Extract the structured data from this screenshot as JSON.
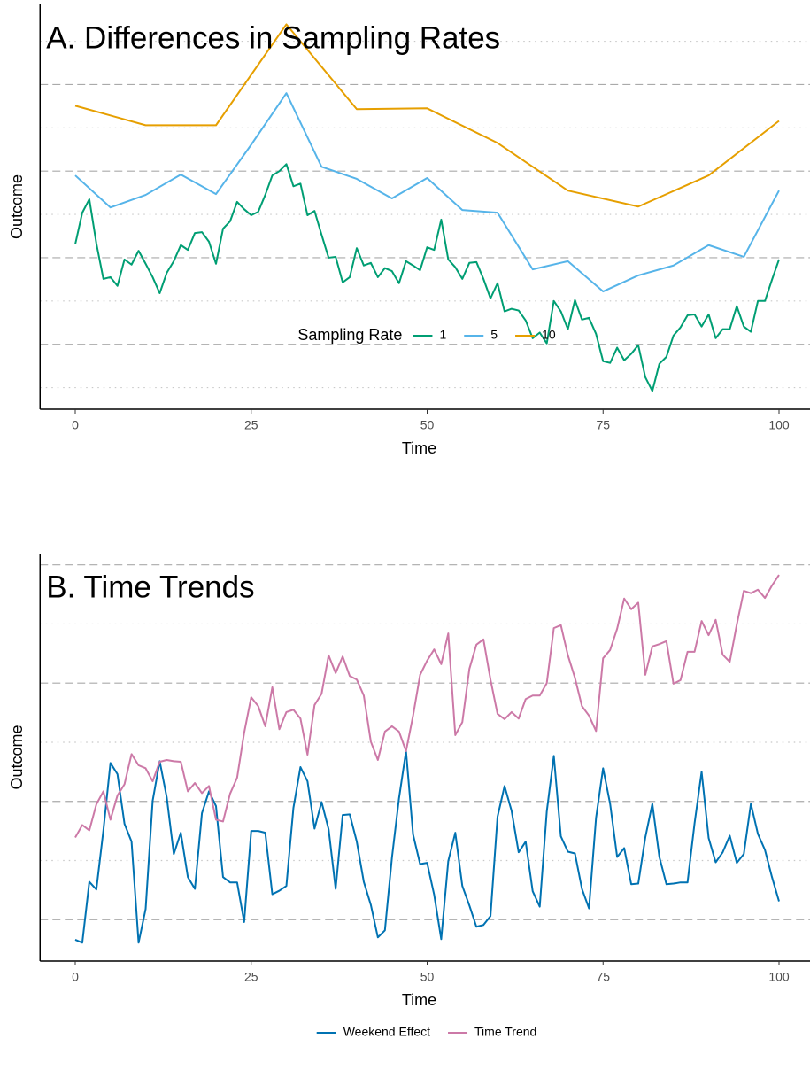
{
  "chart_data": [
    {
      "type": "line",
      "title": "A. Differences in Sampling Rates",
      "xlabel": "Time",
      "ylabel": "Outcome",
      "xlim": [
        -5,
        105
      ],
      "xticks": [
        0,
        25,
        50,
        75,
        100
      ],
      "ylim": [
        -0.5,
        8.85
      ],
      "yticks": [
        1,
        3,
        5,
        7
      ],
      "yminor": [
        0,
        2,
        4,
        6,
        8
      ],
      "legend": "bottom",
      "legend_title": "Sampling Rate",
      "series": [
        {
          "name": "1",
          "color": "#009E73",
          "x": [
            0,
            1,
            2,
            3,
            4,
            5,
            6,
            7,
            8,
            9,
            10,
            11,
            12,
            13,
            14,
            15,
            16,
            17,
            18,
            19,
            20,
            21,
            22,
            23,
            24,
            25,
            26,
            27,
            28,
            29,
            30,
            31,
            32,
            33,
            34,
            35,
            36,
            37,
            38,
            39,
            40,
            41,
            42,
            43,
            44,
            45,
            46,
            47,
            48,
            49,
            50,
            51,
            52,
            53,
            54,
            55,
            56,
            57,
            58,
            59,
            60,
            61,
            62,
            63,
            64,
            65,
            66,
            67,
            68,
            69,
            70,
            71,
            72,
            73,
            74,
            75,
            76,
            77,
            78,
            79,
            80,
            81,
            82,
            83,
            84,
            85,
            86,
            87,
            88,
            89,
            90,
            91,
            92,
            93,
            94,
            95,
            96,
            97,
            98,
            99,
            100
          ],
          "values": [
            3.31,
            4.04,
            4.35,
            3.33,
            2.51,
            2.55,
            2.35,
            2.96,
            2.84,
            3.16,
            2.86,
            2.55,
            2.18,
            2.65,
            2.92,
            3.29,
            3.18,
            3.57,
            3.59,
            3.37,
            2.86,
            3.67,
            3.84,
            4.29,
            4.12,
            3.98,
            4.06,
            4.45,
            4.9,
            5.0,
            5.16,
            4.65,
            4.71,
            3.98,
            4.08,
            3.53,
            3.0,
            3.02,
            2.43,
            2.55,
            3.22,
            2.82,
            2.88,
            2.55,
            2.76,
            2.69,
            2.41,
            2.92,
            2.82,
            2.71,
            3.24,
            3.18,
            3.88,
            2.96,
            2.78,
            2.51,
            2.88,
            2.9,
            2.51,
            2.06,
            2.41,
            1.76,
            1.82,
            1.78,
            1.55,
            1.14,
            1.27,
            1.02,
            2.0,
            1.76,
            1.35,
            2.02,
            1.57,
            1.61,
            1.24,
            0.61,
            0.57,
            0.92,
            0.63,
            0.78,
            0.98,
            0.24,
            -0.08,
            0.55,
            0.71,
            1.2,
            1.39,
            1.67,
            1.69,
            1.41,
            1.69,
            1.14,
            1.35,
            1.35,
            1.88,
            1.41,
            1.29,
            2.0,
            2.0,
            2.49,
            2.96
          ]
        },
        {
          "name": "5",
          "color": "#56B4E9",
          "x": [
            0,
            5,
            10,
            15,
            20,
            25,
            30,
            35,
            40,
            45,
            50,
            55,
            60,
            65,
            70,
            75,
            80,
            85,
            90,
            95,
            100
          ],
          "values": [
            4.9,
            4.16,
            4.45,
            4.92,
            4.47,
            5.61,
            6.8,
            5.1,
            4.82,
            4.37,
            4.84,
            4.1,
            4.04,
            2.73,
            2.92,
            2.22,
            2.59,
            2.82,
            3.29,
            3.02,
            4.55
          ]
        },
        {
          "name": "10",
          "color": "#E69F00",
          "x": [
            0,
            10,
            20,
            30,
            40,
            50,
            60,
            70,
            80,
            90,
            100
          ],
          "values": [
            6.51,
            6.06,
            6.06,
            8.39,
            6.43,
            6.45,
            5.65,
            4.55,
            4.18,
            4.9,
            6.16
          ]
        }
      ]
    },
    {
      "type": "line",
      "title": "B. Time Trends",
      "xlabel": "Time",
      "ylabel": "Outcome",
      "xlim": [
        -5,
        105
      ],
      "xticks": [
        0,
        25,
        50,
        75,
        100
      ],
      "ylim": [
        -0.7,
        6.19
      ],
      "yticks": [
        0,
        2,
        4,
        6
      ],
      "yminor": [
        1,
        3,
        5
      ],
      "legend": "bottom",
      "series": [
        {
          "name": "Weekend Effect",
          "color": "#0072B2",
          "x": [
            0,
            1,
            2,
            3,
            4,
            5,
            6,
            7,
            8,
            9,
            10,
            11,
            12,
            13,
            14,
            15,
            16,
            17,
            18,
            19,
            20,
            21,
            22,
            23,
            24,
            25,
            26,
            27,
            28,
            29,
            30,
            31,
            32,
            33,
            34,
            35,
            36,
            37,
            38,
            39,
            40,
            41,
            42,
            43,
            44,
            45,
            46,
            47,
            48,
            49,
            50,
            51,
            52,
            53,
            54,
            55,
            56,
            57,
            58,
            59,
            60,
            61,
            62,
            63,
            64,
            65,
            66,
            67,
            68,
            69,
            70,
            71,
            72,
            73,
            74,
            75,
            76,
            77,
            78,
            79,
            80,
            81,
            82,
            83,
            84,
            85,
            86,
            87,
            88,
            89,
            90,
            91,
            92,
            93,
            94,
            95,
            96,
            97,
            98,
            99,
            100
          ],
          "values": [
            -0.34,
            -0.39,
            0.64,
            0.51,
            1.51,
            2.65,
            2.46,
            1.62,
            1.32,
            -0.39,
            0.18,
            2.01,
            2.68,
            2.07,
            1.11,
            1.47,
            0.72,
            0.52,
            1.8,
            2.17,
            1.92,
            0.72,
            0.63,
            0.63,
            -0.04,
            1.5,
            1.5,
            1.47,
            0.43,
            0.49,
            0.57,
            1.89,
            2.58,
            2.34,
            1.54,
            1.99,
            1.53,
            0.52,
            1.77,
            1.78,
            1.32,
            0.64,
            0.25,
            -0.3,
            -0.18,
            1.05,
            2.05,
            2.85,
            1.44,
            0.94,
            0.96,
            0.42,
            -0.33,
            0.99,
            1.47,
            0.57,
            0.24,
            -0.12,
            -0.09,
            0.06,
            1.74,
            2.26,
            1.84,
            1.14,
            1.32,
            0.48,
            0.22,
            1.83,
            2.77,
            1.41,
            1.15,
            1.12,
            0.52,
            0.19,
            1.72,
            2.56,
            1.96,
            1.06,
            1.21,
            0.6,
            0.61,
            1.39,
            1.96,
            1.06,
            0.6,
            0.61,
            0.63,
            0.63,
            1.63,
            2.5,
            1.38,
            0.97,
            1.14,
            1.42,
            0.96,
            1.11,
            1.96,
            1.45,
            1.18,
            0.72,
            0.31
          ]
        },
        {
          "name": "Time Trend",
          "color": "#CC79A7",
          "x": [
            0,
            1,
            2,
            3,
            4,
            5,
            6,
            7,
            8,
            9,
            10,
            11,
            12,
            13,
            14,
            15,
            16,
            17,
            18,
            19,
            20,
            21,
            22,
            23,
            24,
            25,
            26,
            27,
            28,
            29,
            30,
            31,
            32,
            33,
            34,
            35,
            36,
            37,
            38,
            39,
            40,
            41,
            42,
            43,
            44,
            45,
            46,
            47,
            48,
            49,
            50,
            51,
            52,
            53,
            54,
            55,
            56,
            57,
            58,
            59,
            60,
            61,
            62,
            63,
            64,
            65,
            66,
            67,
            68,
            69,
            70,
            71,
            72,
            73,
            74,
            75,
            76,
            77,
            78,
            79,
            80,
            81,
            82,
            83,
            84,
            85,
            86,
            87,
            88,
            89,
            90,
            91,
            92,
            93,
            94,
            95,
            96,
            97,
            98,
            99,
            100
          ],
          "values": [
            1.39,
            1.6,
            1.51,
            1.95,
            2.17,
            1.69,
            2.1,
            2.29,
            2.8,
            2.61,
            2.56,
            2.34,
            2.67,
            2.7,
            2.68,
            2.67,
            2.17,
            2.31,
            2.14,
            2.26,
            1.69,
            1.66,
            2.13,
            2.4,
            3.16,
            3.76,
            3.61,
            3.27,
            3.93,
            3.22,
            3.51,
            3.55,
            3.4,
            2.79,
            3.63,
            3.82,
            4.47,
            4.17,
            4.45,
            4.12,
            4.06,
            3.79,
            3.01,
            2.7,
            3.18,
            3.27,
            3.18,
            2.85,
            3.45,
            4.14,
            4.38,
            4.57,
            4.32,
            4.84,
            3.12,
            3.34,
            4.24,
            4.65,
            4.74,
            4.06,
            3.48,
            3.39,
            3.51,
            3.4,
            3.73,
            3.79,
            3.79,
            4.0,
            4.93,
            4.98,
            4.47,
            4.09,
            3.61,
            3.45,
            3.19,
            4.42,
            4.56,
            4.92,
            5.43,
            5.25,
            5.36,
            4.14,
            4.62,
            4.66,
            4.71,
            3.99,
            4.05,
            4.53,
            4.53,
            5.05,
            4.81,
            5.07,
            4.48,
            4.36,
            4.99,
            5.56,
            5.52,
            5.58,
            5.44,
            5.65,
            5.83
          ]
        }
      ]
    }
  ]
}
